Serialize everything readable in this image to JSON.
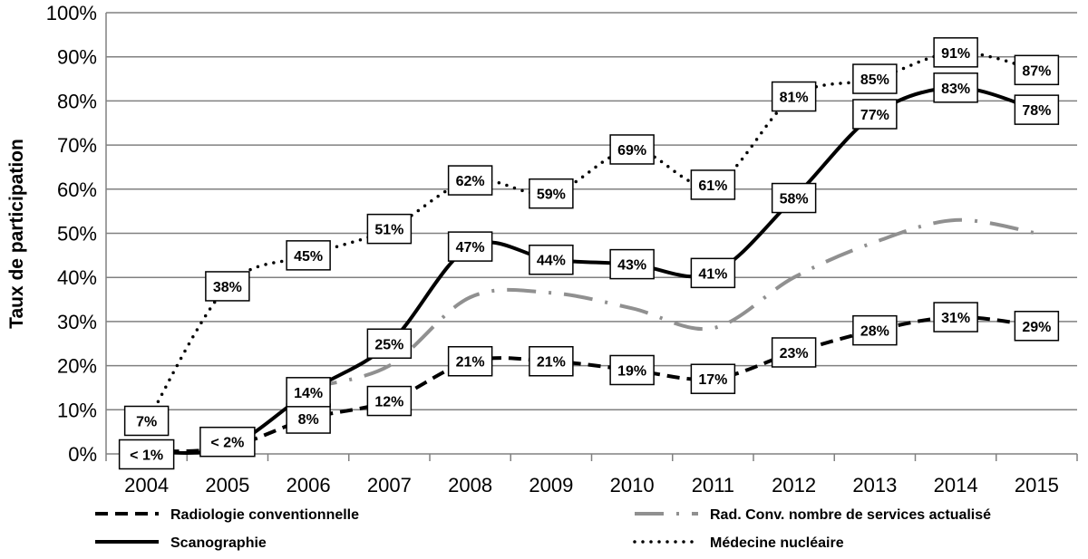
{
  "chart_data": {
    "type": "line",
    "title": "",
    "xlabel": "",
    "ylabel": "Taux de participation",
    "x": [
      2004,
      2005,
      2006,
      2007,
      2008,
      2009,
      2010,
      2011,
      2012,
      2013,
      2014,
      2015
    ],
    "x_tick_labels": [
      "2004",
      "2005",
      "2006",
      "2007",
      "2008",
      "2009",
      "2010",
      "2011",
      "2012",
      "2013",
      "2014",
      "2015"
    ],
    "ylim": [
      0,
      100
    ],
    "y_ticks": [
      0,
      10,
      20,
      30,
      40,
      50,
      60,
      70,
      80,
      90,
      100
    ],
    "y_tick_labels": [
      "0%",
      "10%",
      "20%",
      "30%",
      "40%",
      "50%",
      "60%",
      "70%",
      "80%",
      "90%",
      "100%"
    ],
    "grid": "horizontal",
    "legend_position": "bottom",
    "series": [
      {
        "name": "Radiologie conventionnelle",
        "style": "dashed",
        "color": "#000000",
        "values": [
          0.5,
          1.5,
          8,
          12,
          21,
          21,
          19,
          17,
          23,
          28,
          31,
          29
        ],
        "labels": [
          "",
          "",
          "8%",
          "12%",
          "21%",
          "21%",
          "19%",
          "17%",
          "23%",
          "28%",
          "31%",
          "29%"
        ]
      },
      {
        "name": "Rad. Conv. nombre de services actualisé",
        "style": "dash-dot",
        "color": "#909090",
        "values": [
          null,
          null,
          15,
          20,
          35.5,
          36.5,
          33,
          28.5,
          40,
          48,
          53,
          50
        ],
        "labels": []
      },
      {
        "name": "Scanographie",
        "style": "solid",
        "color": "#000000",
        "values": [
          0.5,
          1.5,
          14,
          25,
          47,
          44,
          43,
          41,
          58,
          77,
          83,
          78
        ],
        "labels": [
          "< 1%",
          "< 2%",
          "14%",
          "25%",
          "47%",
          "44%",
          "43%",
          "41%",
          "58%",
          "77%",
          "83%",
          "78%"
        ]
      },
      {
        "name": "Médecine nucléaire",
        "style": "dotted",
        "color": "#000000",
        "values": [
          7,
          38,
          45,
          51,
          62,
          59,
          69,
          61,
          81,
          85,
          91,
          87
        ],
        "labels": [
          "7%",
          "38%",
          "45%",
          "51%",
          "62%",
          "59%",
          "69%",
          "61%",
          "81%",
          "85%",
          "91%",
          "87%"
        ]
      }
    ]
  }
}
